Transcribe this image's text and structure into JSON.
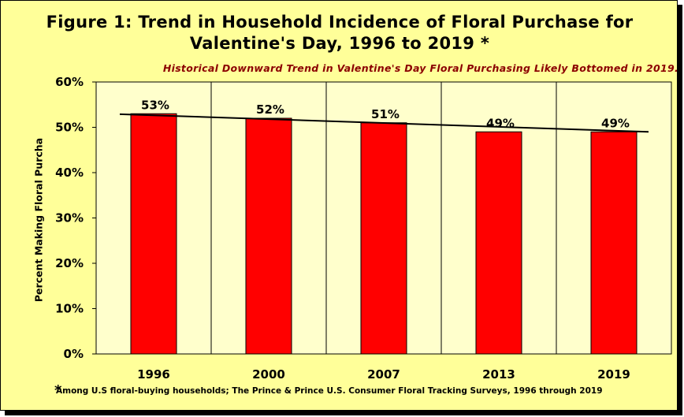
{
  "chart_data": {
    "type": "bar",
    "title": "Figure 1: Trend in Household Incidence of Floral Purchase for Valentine's Day, 1996 to 2019 *",
    "subtitle": "Historical Downward Trend in Valentine's Day Floral Purchasing Likely Bottomed in 2019.",
    "xlabel": "",
    "ylabel": "Percent Making Floral Purcha",
    "categories": [
      "1996",
      "2000",
      "2007",
      "2013",
      "2019"
    ],
    "values": [
      53,
      52,
      51,
      49,
      49
    ],
    "data_labels": [
      "53%",
      "52%",
      "51%",
      "49%",
      "49%"
    ],
    "ylim": [
      0,
      60
    ],
    "yticks": [
      0,
      10,
      20,
      30,
      40,
      50,
      60
    ],
    "ytick_labels": [
      "0%",
      "10%",
      "20%",
      "30%",
      "40%",
      "50%",
      "60%"
    ],
    "trendline": {
      "type": "linear",
      "start": 52.9,
      "end": 49.0
    },
    "grid": "vertical",
    "legend": "none",
    "colors": {
      "bar": "#ff0000",
      "plot_bg": "#ffffcc",
      "frame_bg": "#ffff99",
      "trendline": "#000000",
      "subtitle": "#8b0000"
    }
  },
  "footnote": {
    "mark": "*",
    "text": "Among U.S floral-buying households;  The Prince & Prince U.S. Consumer Floral Tracking Surveys, 1996 through 2019"
  }
}
